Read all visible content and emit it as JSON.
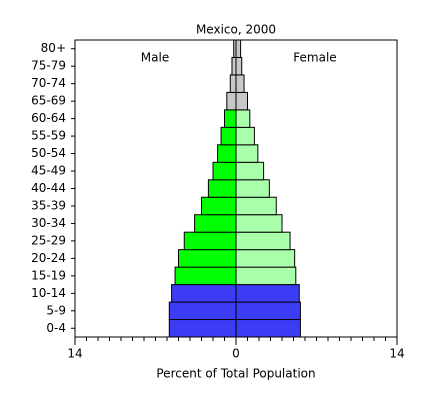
{
  "chart_data": {
    "type": "population-pyramid",
    "title": "Mexico, 2000",
    "x_label": "Percent of Total Population",
    "categories": [
      "0-4",
      "5-9",
      "10-14",
      "15-19",
      "20-24",
      "25-29",
      "30-34",
      "35-39",
      "40-44",
      "45-49",
      "50-54",
      "55-59",
      "60-64",
      "65-69",
      "70-74",
      "75-79",
      "80+"
    ],
    "series": [
      {
        "name": "Male",
        "values": [
          5.8,
          5.8,
          5.6,
          5.3,
          5.0,
          4.5,
          3.6,
          3.0,
          2.4,
          2.0,
          1.6,
          1.3,
          1.0,
          0.8,
          0.5,
          0.35,
          0.2
        ],
        "colors": [
          "#3c3cf5",
          "#3c3cf5",
          "#3c3cf5",
          "#00ff00",
          "#00ff00",
          "#00ff00",
          "#00ff00",
          "#00ff00",
          "#00ff00",
          "#00ff00",
          "#00ff00",
          "#00ff00",
          "#00ff00",
          "#c8c8c8",
          "#c8c8c8",
          "#c8c8c8",
          "#c8c8c8"
        ]
      },
      {
        "name": "Female",
        "values": [
          5.6,
          5.6,
          5.5,
          5.2,
          5.1,
          4.7,
          4.0,
          3.5,
          2.9,
          2.4,
          1.9,
          1.6,
          1.2,
          1.0,
          0.7,
          0.5,
          0.4
        ],
        "colors": [
          "#3c3cf5",
          "#3c3cf5",
          "#3c3cf5",
          "#aaffaa",
          "#aaffaa",
          "#aaffaa",
          "#aaffaa",
          "#aaffaa",
          "#aaffaa",
          "#aaffaa",
          "#aaffaa",
          "#aaffaa",
          "#aaffaa",
          "#c8c8c8",
          "#c8c8c8",
          "#c8c8c8",
          "#c8c8c8"
        ]
      }
    ],
    "xlim": [
      -14,
      14
    ],
    "xticks": [
      {
        "value": -14,
        "label": "14"
      },
      0,
      14
    ],
    "x_minor_step": 1
  }
}
